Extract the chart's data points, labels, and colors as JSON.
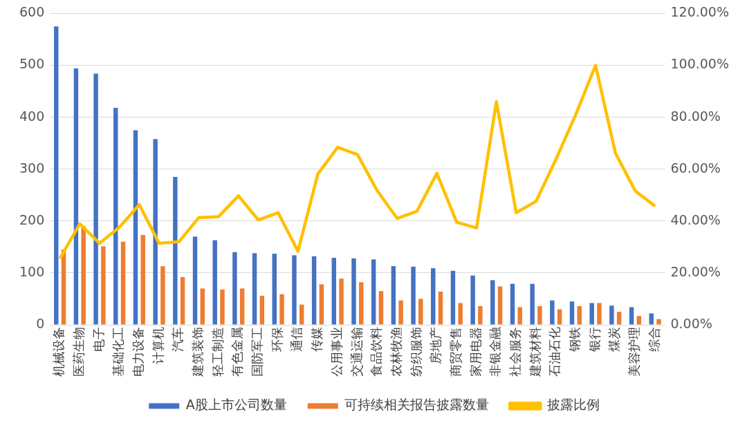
{
  "chart_data": {
    "type": "bar",
    "categories": [
      "机械设备",
      "医药生物",
      "电子",
      "基础化工",
      "电力设备",
      "计算机",
      "汽车",
      "建筑装饰",
      "轻工制造",
      "有色金属",
      "国防军工",
      "环保",
      "通信",
      "传媒",
      "公用事业",
      "交通运输",
      "食品饮料",
      "农林牧渔",
      "纺织服饰",
      "房地产",
      "商贸零售",
      "家用电器",
      "非银金融",
      "社会服务",
      "建筑材料",
      "石油石化",
      "钢铁",
      "银行",
      "煤炭",
      "美容护理",
      "综合"
    ],
    "series": [
      {
        "name": "A股上市公司数量",
        "color": "#4472c4",
        "values": [
          575,
          494,
          484,
          418,
          375,
          358,
          285,
          170,
          163,
          140,
          138,
          137,
          134,
          132,
          129,
          128,
          126,
          113,
          112,
          109,
          104,
          95,
          86,
          79,
          79,
          47,
          45,
          42,
          37,
          34,
          22
        ]
      },
      {
        "name": "可持续相关报告披露数量",
        "color": "#ed7d31",
        "values": [
          145,
          190,
          151,
          160,
          173,
          113,
          92,
          70,
          68,
          70,
          56,
          59,
          39,
          78,
          89,
          82,
          65,
          47,
          50,
          64,
          42,
          36,
          74,
          34,
          36,
          30,
          36,
          42,
          25,
          17,
          11
        ]
      },
      {
        "name": "披露比例",
        "color": "#ffc000",
        "type": "line",
        "axis": "y2",
        "values": [
          25.5,
          38.9,
          31.4,
          37.6,
          46.3,
          31.4,
          32,
          41.3,
          41.7,
          49.7,
          40.4,
          43.2,
          28.3,
          58.1,
          68.4,
          65.6,
          51.6,
          41,
          43.8,
          58.4,
          39.5,
          37.3,
          86,
          43.2,
          47.6,
          63.7,
          81,
          100,
          66.2,
          51.6,
          45.7
        ]
      }
    ],
    "ylim": [
      0,
      600
    ],
    "yticks": [
      0,
      100,
      200,
      300,
      400,
      500,
      600
    ],
    "y2lim": [
      0,
      120
    ],
    "y2ticks": [
      {
        "value": 0,
        "label": "0.00%"
      },
      {
        "value": 20,
        "label": "20.00%"
      },
      {
        "value": 40,
        "label": "40.00%"
      },
      {
        "value": 60,
        "label": "60.00%"
      },
      {
        "value": 80,
        "label": "80.00%"
      },
      {
        "value": 100,
        "label": "100.00%"
      },
      {
        "value": 120,
        "label": "120.00%"
      }
    ],
    "grid": "y",
    "legend": "bottom",
    "marker": "none",
    "line_style": "solid"
  }
}
